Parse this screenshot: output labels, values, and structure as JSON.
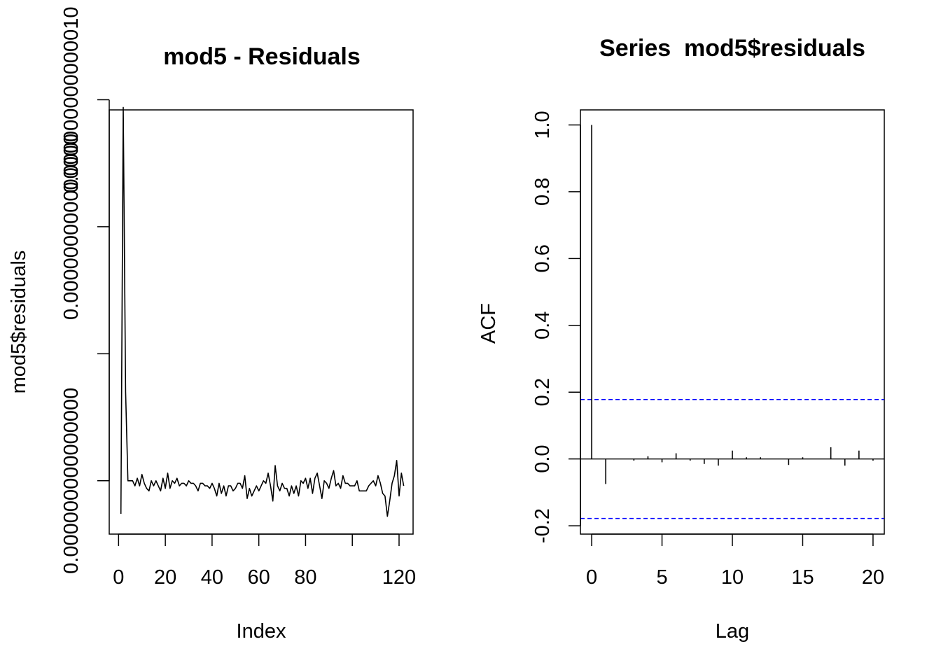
{
  "chart_data": [
    {
      "type": "line",
      "title": "mod5 - Residuals",
      "xlabel": "Index",
      "ylabel": "mod5$residuals",
      "xlim": [
        -4.0,
        126.0
      ],
      "ylim": [
        -2.1e-15,
        1.46e-14
      ],
      "x_ticks": [
        0,
        20,
        40,
        60,
        80,
        100,
        120
      ],
      "x_tick_labels": [
        "0",
        "20",
        "40",
        "60",
        "80",
        "",
        "120"
      ],
      "y_ticks": [
        0,
        5e-15,
        1e-14,
        1.5e-14
      ],
      "y_tick_labels": [
        "0.000000000000000",
        "",
        "0.000000000000000",
        "0.000000000000010"
      ],
      "series": [
        {
          "x": [
            1,
            2,
            3,
            4,
            5,
            6,
            7,
            8,
            9,
            10,
            11,
            12,
            13,
            14,
            15,
            16,
            17,
            18,
            19,
            20,
            21,
            22,
            23,
            24,
            25,
            26,
            27,
            28,
            29,
            30,
            31,
            32,
            33,
            34,
            35,
            36,
            37,
            38,
            39,
            40,
            41,
            42,
            43,
            44,
            45,
            46,
            47,
            48,
            49,
            50,
            51,
            52,
            53,
            54,
            55,
            56,
            57,
            58,
            59,
            60,
            61,
            62,
            63,
            64,
            65,
            66,
            67,
            68,
            69,
            70,
            71,
            72,
            73,
            74,
            75,
            76,
            77,
            78,
            79,
            80,
            81,
            82,
            83,
            84,
            85,
            86,
            87,
            88,
            89,
            90,
            91,
            92,
            93,
            94,
            95,
            96,
            97,
            98,
            99,
            100,
            101,
            102,
            103,
            104,
            105,
            106,
            107,
            108,
            109,
            110,
            111,
            112,
            113,
            114,
            115,
            116,
            117,
            118,
            119,
            120,
            121,
            122
          ],
          "values": [
            -1.3e-15,
            1.47e-14,
            3.5e-15,
            0.0,
            0.0,
            0.0,
            -2e-16,
            1e-16,
            -2e-16,
            2.5e-16,
            -1e-16,
            -3e-16,
            -4e-16,
            0.0,
            -2e-16,
            0.0,
            -2e-16,
            -4e-16,
            1e-16,
            -3e-16,
            3e-16,
            -3e-16,
            0.0,
            -1e-16,
            1e-16,
            -2e-16,
            -1e-16,
            -1e-16,
            -2e-16,
            0.0,
            -1e-16,
            -1e-16,
            -2e-16,
            -4e-16,
            -1e-16,
            -1e-16,
            -2e-16,
            -2e-16,
            -3e-16,
            -1e-16,
            -3e-16,
            -6e-16,
            -1e-16,
            -5e-16,
            -2e-16,
            -6e-16,
            -2e-16,
            -2e-16,
            -4e-16,
            -3e-16,
            -1e-16,
            -1e-16,
            -3e-16,
            2e-16,
            -7e-16,
            -3e-16,
            -6e-16,
            -4e-16,
            -2e-16,
            -4e-16,
            -2e-16,
            0.0,
            -1e-16,
            3e-16,
            -2e-16,
            -8e-16,
            6e-16,
            -2e-16,
            -4e-16,
            -1e-16,
            -3e-16,
            -3e-16,
            -6e-16,
            -2e-16,
            -5e-16,
            -2e-16,
            -6e-16,
            0.0,
            -1e-16,
            1e-16,
            -3e-16,
            1e-16,
            -5e-16,
            1e-16,
            3e-16,
            -2e-16,
            -7e-16,
            0.0,
            -1e-16,
            -3e-16,
            1e-16,
            4e-16,
            -2e-16,
            -1e-16,
            -3e-16,
            2e-16,
            -1e-16,
            -1e-16,
            -2e-16,
            -2e-16,
            -2e-16,
            0.0,
            -4e-16,
            -4e-16,
            -4e-16,
            -4e-16,
            -2e-16,
            -1e-16,
            0.0,
            -2e-16,
            2e-16,
            -1e-16,
            -5e-16,
            -6e-16,
            -1.4e-15,
            -8e-16,
            -1e-16,
            2e-16,
            8e-16,
            -6e-16,
            3e-16,
            -2e-16
          ]
        }
      ]
    },
    {
      "type": "bar",
      "title": "Series  mod5$residuals",
      "xlabel": "Lag",
      "ylabel": "ACF",
      "xlim": [
        -0.8,
        20.8
      ],
      "ylim": [
        -0.225,
        1.045
      ],
      "x_ticks": [
        0,
        5,
        10,
        15,
        20
      ],
      "x_tick_labels": [
        "0",
        "5",
        "10",
        "15",
        "20"
      ],
      "y_ticks": [
        -0.2,
        0.0,
        0.2,
        0.4,
        0.6,
        0.8,
        1.0
      ],
      "y_tick_labels": [
        "-0.2",
        "0.0",
        "0.2",
        "0.4",
        "0.6",
        "0.8",
        "1.0"
      ],
      "zero_line": 0,
      "confidence_bounds": [
        0.178,
        -0.178
      ],
      "confidence_color": "#0000ff",
      "lags": [
        0,
        1,
        2,
        3,
        4,
        5,
        6,
        7,
        8,
        9,
        10,
        11,
        12,
        13,
        14,
        15,
        16,
        17,
        18,
        19,
        20
      ],
      "values": [
        1.0,
        -0.075,
        0.0,
        -0.005,
        0.008,
        -0.01,
        0.017,
        -0.005,
        -0.015,
        -0.02,
        0.025,
        0.005,
        0.005,
        0.0,
        -0.018,
        0.005,
        0.0,
        0.035,
        -0.02,
        0.025,
        -0.005
      ]
    }
  ]
}
